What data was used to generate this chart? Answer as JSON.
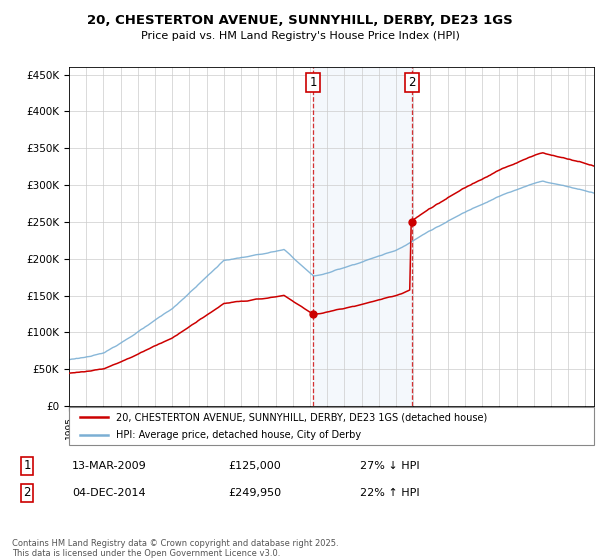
{
  "title_line1": "20, CHESTERTON AVENUE, SUNNYHILL, DERBY, DE23 1GS",
  "title_line2": "Price paid vs. HM Land Registry's House Price Index (HPI)",
  "legend_line1": "20, CHESTERTON AVENUE, SUNNYHILL, DERBY, DE23 1GS (detached house)",
  "legend_line2": "HPI: Average price, detached house, City of Derby",
  "transaction1_date": "13-MAR-2009",
  "transaction1_price": "£125,000",
  "transaction1_hpi": "27% ↓ HPI",
  "transaction2_date": "04-DEC-2014",
  "transaction2_price": "£249,950",
  "transaction2_hpi": "22% ↑ HPI",
  "footer": "Contains HM Land Registry data © Crown copyright and database right 2025.\nThis data is licensed under the Open Government Licence v3.0.",
  "red_color": "#cc0000",
  "blue_color": "#7bafd4",
  "vline_color": "#cc0000",
  "ymin": 0,
  "ymax": 460000,
  "xmin": 1995,
  "xmax": 2025.5,
  "t_sale1": 2009.19,
  "t_sale2": 2014.92,
  "price_sale1": 125000,
  "price_sale2": 249950
}
